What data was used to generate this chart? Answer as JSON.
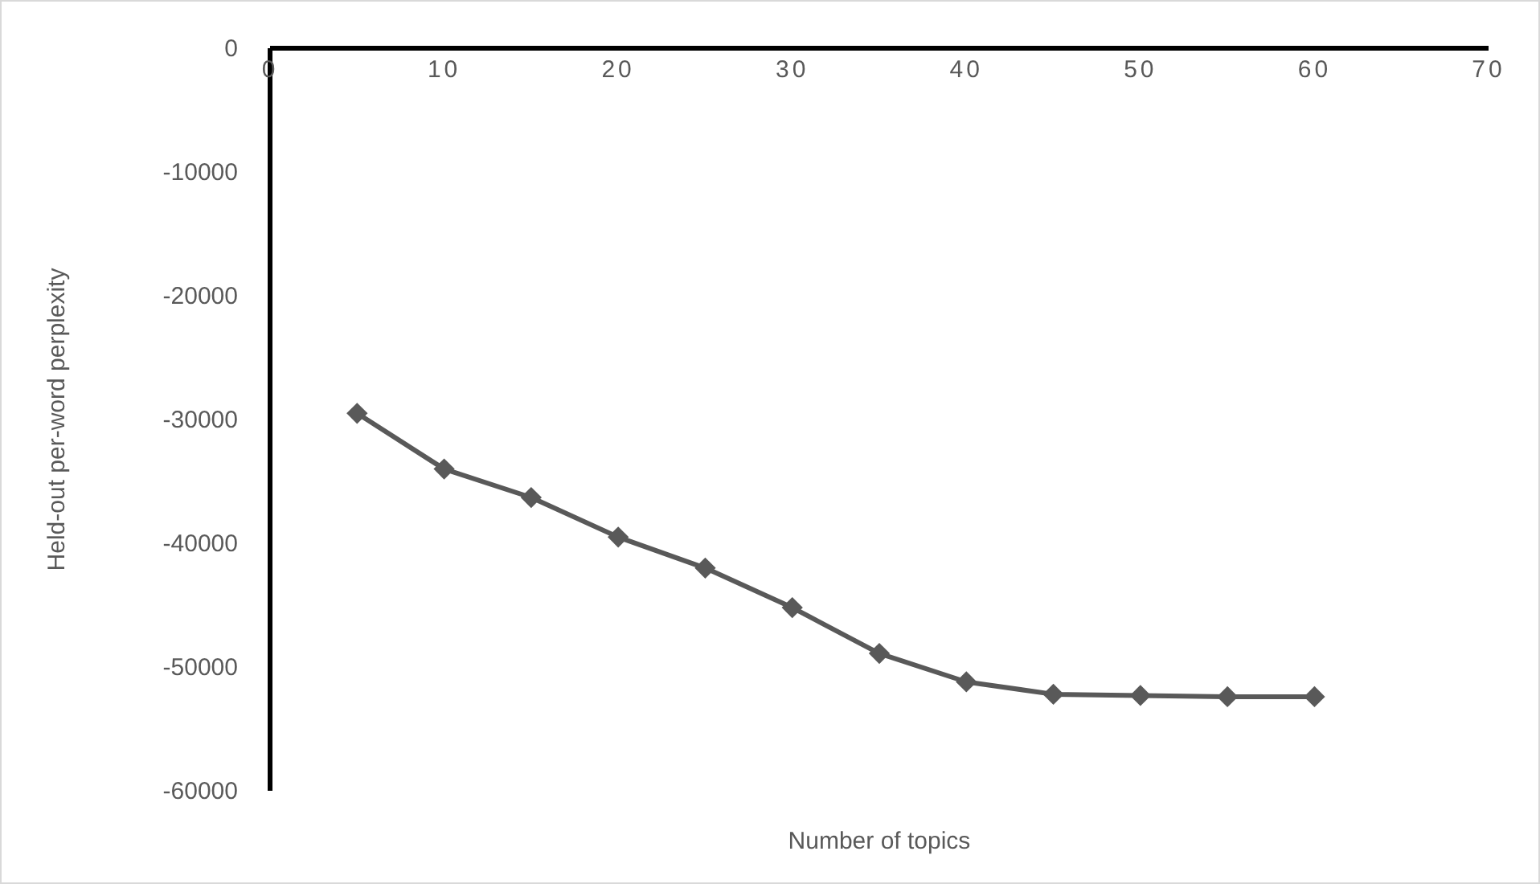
{
  "chart_data": {
    "type": "line",
    "xlabel": "Number of topics",
    "ylabel": "Held-out per-word perplexity",
    "x": [
      5,
      10,
      15,
      20,
      25,
      30,
      35,
      40,
      45,
      50,
      55,
      60
    ],
    "series": [
      {
        "color": "#595959",
        "values": [
          -29500,
          -34000,
          -36300,
          -39500,
          -42000,
          -45200,
          -48900,
          -51200,
          -52200,
          -52300,
          -52400,
          -52400
        ]
      }
    ],
    "xlim": [
      0,
      70
    ],
    "xticks": [
      0,
      10,
      20,
      30,
      40,
      50,
      60,
      70
    ],
    "ylim": [
      -60000,
      0
    ],
    "yticks": [
      -60000,
      -50000,
      -40000,
      -30000,
      -20000,
      -10000,
      0
    ],
    "marker": "diamond"
  }
}
